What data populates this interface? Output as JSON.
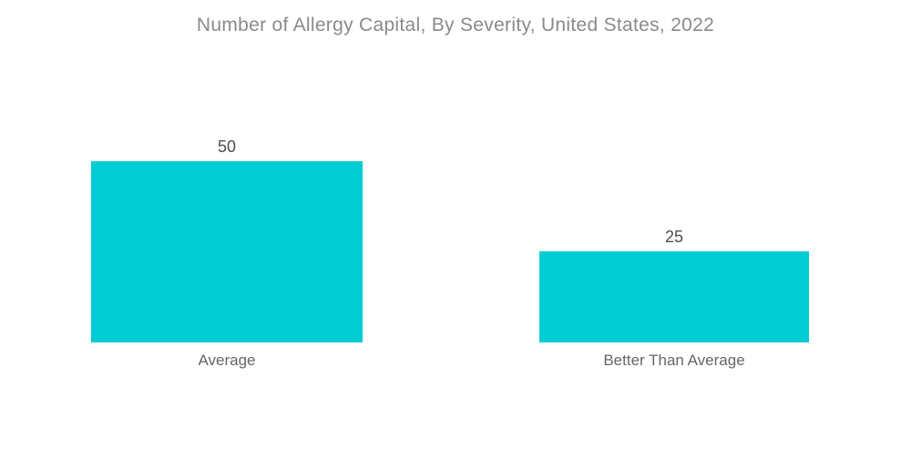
{
  "chart_data": {
    "type": "bar",
    "title": "Number of Allergy Capital, By Severity, United States, 2022",
    "categories": [
      "Average",
      "Better Than Average"
    ],
    "values": [
      50,
      25
    ],
    "xlabel": "",
    "ylabel": "",
    "ylim": [
      0,
      50
    ],
    "grid": false,
    "legend_position": "none",
    "axes_visible": false,
    "data_labels": "above-bars",
    "bar_color": "#00CDD3",
    "title_color": "#8A8A8A",
    "value_label_color": "#4D4D4D",
    "category_label_color": "#666666",
    "background_color": "#FFFFFF"
  }
}
